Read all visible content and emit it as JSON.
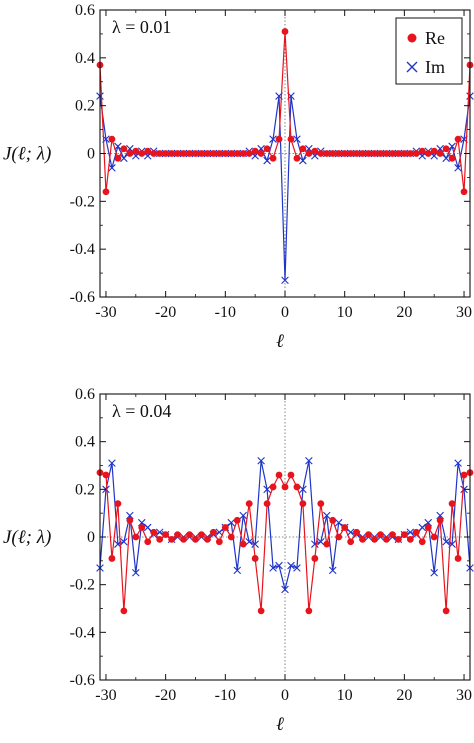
{
  "colors": {
    "re": "#e8141d",
    "im": "#1f35c9",
    "axis": "#111111",
    "zero_line": "#666666"
  },
  "chart_data": [
    {
      "type": "line",
      "annotation": "λ = 0.01",
      "ylabel": "J(ℓ; λ)",
      "xlabel": "ℓ",
      "xlim": [
        -31,
        31
      ],
      "ylim": [
        -0.6,
        0.6
      ],
      "xticks": [
        -30,
        -20,
        -10,
        0,
        10,
        20,
        30
      ],
      "yticks": [
        0.6,
        0.4,
        0.2,
        0,
        -0.2,
        -0.4,
        -0.6
      ],
      "ytick_labels": [
        "0.6",
        "0.4",
        "0.2",
        "0",
        "-0.2",
        "-0.4",
        "-0.6"
      ],
      "xtick_labels": [
        "-30",
        "-20",
        "-10",
        "0",
        "10",
        "20",
        "30"
      ],
      "zero_lines": true,
      "legend": {
        "position": "top-right",
        "entries": [
          "Re",
          "Im"
        ]
      },
      "x": [
        -31,
        -30,
        -29,
        -28,
        -27,
        -26,
        -25,
        -24,
        -23,
        -22,
        -21,
        -20,
        -19,
        -18,
        -17,
        -16,
        -15,
        -14,
        -13,
        -12,
        -11,
        -10,
        -9,
        -8,
        -7,
        -6,
        -5,
        -4,
        -3,
        -2,
        -1,
        0,
        1,
        2,
        3,
        4,
        5,
        6,
        7,
        8,
        9,
        10,
        11,
        12,
        13,
        14,
        15,
        16,
        17,
        18,
        19,
        20,
        21,
        22,
        23,
        24,
        25,
        26,
        27,
        28,
        29,
        30,
        31
      ],
      "series": [
        {
          "name": "Re",
          "marker": "circle",
          "values": [
            0.37,
            -0.16,
            0.06,
            -0.02,
            0.02,
            0,
            0.01,
            0,
            0.01,
            0,
            0,
            0,
            0,
            0,
            0,
            0,
            0,
            0,
            0,
            0,
            0,
            0,
            0,
            0,
            0,
            0,
            0.01,
            0,
            0.02,
            -0.02,
            0.06,
            0.51,
            0.06,
            -0.02,
            0.02,
            0,
            0.01,
            0,
            0,
            0,
            0,
            0,
            0,
            0,
            0,
            0,
            0,
            0,
            0,
            0,
            0,
            0,
            0,
            0,
            0.01,
            0,
            0.01,
            0,
            0.02,
            -0.02,
            0.06,
            -0.16,
            0.37
          ]
        },
        {
          "name": "Im",
          "marker": "cross",
          "values": [
            0.24,
            0.06,
            -0.06,
            0.03,
            -0.02,
            0.02,
            -0.01,
            0.01,
            -0.01,
            0.01,
            0,
            0,
            0,
            0,
            0,
            0,
            0,
            0,
            0,
            0,
            0,
            0,
            0,
            0,
            0,
            0.01,
            -0.01,
            0.02,
            -0.03,
            0.06,
            0.24,
            -0.53,
            0.24,
            0.06,
            -0.03,
            0.02,
            -0.01,
            0.01,
            0,
            0,
            0,
            0,
            0,
            0,
            0,
            0,
            0,
            0,
            0,
            0,
            0,
            0,
            0,
            0.01,
            -0.01,
            0.01,
            -0.01,
            0.02,
            -0.02,
            0.03,
            -0.06,
            0.06,
            0.24
          ]
        }
      ]
    },
    {
      "type": "line",
      "annotation": "λ = 0.04",
      "ylabel": "J(ℓ; λ)",
      "xlabel": "ℓ",
      "xlim": [
        -31,
        31
      ],
      "ylim": [
        -0.6,
        0.6
      ],
      "xticks": [
        -30,
        -20,
        -10,
        0,
        10,
        20,
        30
      ],
      "yticks": [
        0.6,
        0.4,
        0.2,
        0,
        -0.2,
        -0.4,
        -0.6
      ],
      "ytick_labels": [
        "0.6",
        "0.4",
        "0.2",
        "0",
        "-0.2",
        "-0.4",
        "-0.6"
      ],
      "xtick_labels": [
        "-30",
        "-20",
        "-10",
        "0",
        "10",
        "20",
        "30"
      ],
      "zero_lines": true,
      "x": [
        -31,
        -30,
        -29,
        -28,
        -27,
        -26,
        -25,
        -24,
        -23,
        -22,
        -21,
        -20,
        -19,
        -18,
        -17,
        -16,
        -15,
        -14,
        -13,
        -12,
        -11,
        -10,
        -9,
        -8,
        -7,
        -6,
        -5,
        -4,
        -3,
        -2,
        -1,
        0,
        1,
        2,
        3,
        4,
        5,
        6,
        7,
        8,
        9,
        10,
        11,
        12,
        13,
        14,
        15,
        16,
        17,
        18,
        19,
        20,
        21,
        22,
        23,
        24,
        25,
        26,
        27,
        28,
        29,
        30,
        31
      ],
      "series": [
        {
          "name": "Re",
          "marker": "circle",
          "values": [
            0.27,
            0.26,
            -0.09,
            0.14,
            -0.31,
            0.07,
            0,
            0.04,
            -0.02,
            0.02,
            -0.01,
            0.01,
            -0.01,
            0.01,
            -0.01,
            0.01,
            -0.01,
            0.01,
            -0.01,
            0.02,
            -0.02,
            0.04,
            0,
            0.07,
            -0.03,
            0.14,
            -0.09,
            -0.31,
            0.14,
            0.21,
            0.26,
            0.21,
            0.26,
            0.21,
            0.14,
            -0.31,
            -0.09,
            0.14,
            -0.03,
            0.07,
            0,
            0.04,
            -0.02,
            0.02,
            -0.01,
            0.01,
            -0.01,
            0.01,
            -0.01,
            0.01,
            -0.01,
            0.01,
            -0.01,
            0.02,
            -0.02,
            0.04,
            0,
            0.07,
            -0.31,
            0.14,
            -0.09,
            0.26,
            0.27
          ]
        },
        {
          "name": "Im",
          "marker": "cross",
          "values": [
            -0.13,
            0.2,
            0.31,
            -0.03,
            -0.02,
            0.09,
            -0.15,
            0.06,
            0.04,
            0.01,
            0.02,
            0.01,
            -0.01,
            0,
            0,
            0,
            0,
            0,
            0,
            0.01,
            0.02,
            0.04,
            0.06,
            -0.14,
            0.09,
            -0.02,
            -0.03,
            0.32,
            0.2,
            -0.13,
            -0.12,
            -0.22,
            -0.12,
            -0.13,
            0.2,
            0.32,
            -0.03,
            -0.02,
            0.09,
            -0.14,
            0.06,
            0.04,
            0.02,
            0.01,
            0,
            0,
            0,
            0,
            0,
            0,
            -0.01,
            0.01,
            0.02,
            0.01,
            0.04,
            0.06,
            -0.15,
            0.09,
            -0.02,
            -0.03,
            0.31,
            0.2,
            -0.13
          ]
        }
      ]
    }
  ]
}
